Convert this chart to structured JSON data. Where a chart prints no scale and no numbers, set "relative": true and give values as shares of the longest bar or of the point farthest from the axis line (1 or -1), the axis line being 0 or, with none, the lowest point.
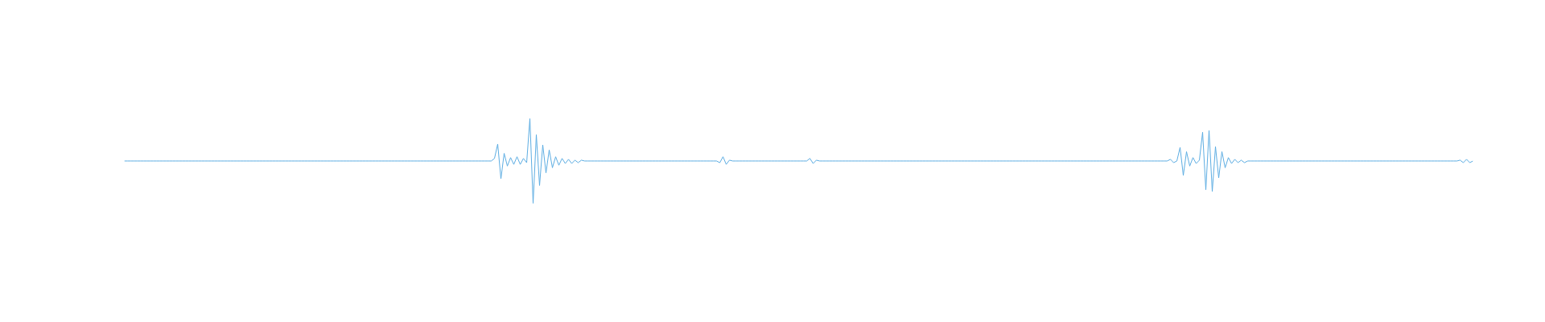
{
  "chart_data": {
    "type": "line",
    "relative": true,
    "color": "#5dade2",
    "categories": [
      null,
      null,
      null,
      null,
      null,
      null,
      null,
      null,
      null,
      null,
      null,
      null,
      null,
      null,
      null,
      null,
      null,
      null,
      null,
      null,
      null,
      null,
      null,
      null,
      null,
      null,
      null,
      null,
      null,
      null,
      null,
      null,
      null,
      null,
      null,
      null,
      null,
      null,
      null,
      null,
      null,
      null,
      null,
      null,
      null,
      null,
      null,
      null,
      null,
      null,
      null,
      null,
      null,
      null,
      null,
      null,
      null,
      null,
      null,
      null,
      null,
      null,
      null,
      null,
      null,
      null,
      null,
      null,
      null,
      null,
      null,
      null,
      null,
      null,
      null,
      null,
      null,
      null,
      null,
      null,
      null,
      null,
      null,
      null,
      null,
      null,
      null,
      null,
      null,
      null,
      null,
      null,
      null,
      null,
      null,
      null,
      null,
      null,
      null,
      null,
      null,
      null,
      null,
      null,
      null,
      null,
      null,
      null,
      null,
      null,
      null,
      null,
      null,
      null,
      null,
      null,
      null,
      null,
      null,
      null,
      null,
      null,
      null,
      null,
      null,
      null,
      null,
      null,
      null,
      null,
      null,
      null,
      null,
      null,
      null,
      null,
      null,
      null,
      null,
      null,
      null,
      null,
      null,
      null,
      null,
      null,
      null,
      null,
      null,
      null,
      null,
      null,
      null,
      null,
      null,
      null,
      null,
      null,
      null,
      null,
      null,
      null,
      null,
      null,
      null,
      null,
      null,
      null,
      null,
      null,
      null,
      null,
      null,
      null,
      null,
      null,
      null,
      null,
      null,
      null,
      null,
      null,
      null,
      null,
      null,
      null,
      null,
      null,
      null,
      null,
      null,
      null,
      null,
      null,
      null,
      null,
      null,
      null,
      null,
      null,
      null,
      null,
      null,
      null,
      null,
      null,
      null,
      null,
      null,
      null,
      null,
      null,
      null,
      null,
      null,
      null,
      null,
      null,
      null,
      null,
      null,
      null,
      null,
      null,
      null,
      null,
      null,
      null,
      null,
      null,
      null,
      null,
      null,
      null,
      null,
      null,
      null,
      null,
      null,
      null,
      null,
      null,
      null,
      null,
      null,
      null,
      null,
      null,
      null,
      null,
      null,
      null,
      null,
      null,
      null,
      null,
      null,
      null,
      null,
      null,
      null,
      null,
      null,
      null,
      null,
      null,
      null,
      null,
      null,
      null,
      null,
      null,
      null,
      null,
      null,
      null,
      null,
      null,
      null,
      null,
      null,
      null,
      null,
      null,
      null,
      null,
      null,
      null,
      null,
      null,
      null,
      null,
      null,
      null,
      null,
      null,
      null,
      null,
      null,
      null,
      null,
      null,
      null,
      null,
      null,
      null,
      null,
      null,
      null,
      null,
      null,
      null,
      null,
      null,
      null,
      null,
      null,
      null,
      null,
      null,
      null,
      null,
      null,
      null,
      null,
      null,
      null,
      null,
      null,
      null,
      null,
      null,
      null,
      null,
      null,
      null,
      null,
      null,
      null,
      null,
      null,
      null,
      null,
      null,
      null,
      null,
      null,
      null,
      null,
      null,
      null,
      null,
      null,
      null,
      null,
      null,
      null,
      null,
      null,
      null,
      null,
      null,
      null,
      null,
      null,
      null,
      null,
      null,
      null,
      null,
      null,
      null,
      null,
      null,
      null,
      null,
      null,
      null,
      null,
      null,
      null,
      null,
      null,
      null,
      null,
      null,
      null,
      null,
      null,
      null,
      null,
      null,
      null,
      null,
      null,
      null,
      null,
      null,
      null,
      null,
      null,
      null,
      null,
      null,
      null,
      null,
      null,
      null,
      null,
      null,
      null,
      null,
      null,
      null,
      null,
      null,
      null,
      null,
      null,
      null
    ],
    "values": [
      0.5,
      0.5,
      0.5,
      0.5,
      0.5,
      0.5,
      0.5,
      0.5,
      0.5,
      0.5,
      0.5,
      0.5,
      0.5,
      0.5,
      0.5,
      0.5,
      0.5,
      0.5,
      0.5,
      0.5,
      0.5,
      0.5,
      0.5,
      0.5,
      0.5,
      0.5,
      0.5,
      0.5,
      0.5,
      0.5,
      0.5,
      0.5,
      0.5,
      0.5,
      0.5,
      0.5,
      0.5,
      0.5,
      0.5,
      0.5,
      0.5,
      0.5,
      0.5,
      0.5,
      0.5,
      0.5,
      0.5,
      0.5,
      0.5,
      0.5,
      0.5,
      0.5,
      0.5,
      0.5,
      0.5,
      0.5,
      0.5,
      0.5,
      0.5,
      0.5,
      0.5,
      0.5,
      0.5,
      0.5,
      0.5,
      0.5,
      0.5,
      0.5,
      0.5,
      0.5,
      0.5,
      0.5,
      0.5,
      0.5,
      0.5,
      0.5,
      0.5,
      0.5,
      0.5,
      0.5,
      0.5,
      0.5,
      0.5,
      0.5,
      0.5,
      0.5,
      0.5,
      0.5,
      0.5,
      0.5,
      0.5,
      0.5,
      0.5,
      0.5,
      0.5,
      0.5,
      0.5,
      0.5,
      0.5,
      0.5,
      0.5,
      0.5,
      0.5,
      0.5,
      0.5,
      0.5,
      0.5,
      0.5,
      0.5,
      0.5,
      0.5,
      0.5,
      0.5,
      0.5,
      0.5,
      0.53,
      0.7,
      0.29,
      0.59,
      0.44,
      0.54,
      0.46,
      0.55,
      0.46,
      0.53,
      0.48,
      1.0,
      0.0,
      0.81,
      0.21,
      0.69,
      0.36,
      0.63,
      0.42,
      0.55,
      0.45,
      0.53,
      0.47,
      0.52,
      0.47,
      0.51,
      0.48,
      0.51,
      0.5,
      0.5,
      0.5,
      0.5,
      0.5,
      0.5,
      0.5,
      0.5,
      0.5,
      0.5,
      0.5,
      0.5,
      0.5,
      0.5,
      0.5,
      0.5,
      0.5,
      0.5,
      0.5,
      0.5,
      0.5,
      0.5,
      0.5,
      0.5,
      0.5,
      0.5,
      0.5,
      0.5,
      0.5,
      0.5,
      0.5,
      0.5,
      0.5,
      0.5,
      0.5,
      0.5,
      0.5,
      0.5,
      0.5,
      0.5,
      0.5,
      0.5,
      0.48,
      0.55,
      0.46,
      0.51,
      0.5,
      0.5,
      0.5,
      0.5,
      0.5,
      0.5,
      0.5,
      0.5,
      0.5,
      0.5,
      0.5,
      0.5,
      0.5,
      0.5,
      0.5,
      0.5,
      0.5,
      0.5,
      0.5,
      0.5,
      0.5,
      0.5,
      0.5,
      0.5,
      0.53,
      0.47,
      0.51,
      0.5,
      0.5,
      0.5,
      0.5,
      0.5,
      0.5,
      0.5,
      0.5,
      0.5,
      0.5,
      0.5,
      0.5,
      0.5,
      0.5,
      0.5,
      0.5,
      0.5,
      0.5,
      0.5,
      0.5,
      0.5,
      0.5,
      0.5,
      0.5,
      0.5,
      0.5,
      0.5,
      0.5,
      0.5,
      0.5,
      0.5,
      0.5,
      0.5,
      0.5,
      0.5,
      0.5,
      0.5,
      0.5,
      0.5,
      0.5,
      0.5,
      0.5,
      0.5,
      0.5,
      0.5,
      0.5,
      0.5,
      0.5,
      0.5,
      0.5,
      0.5,
      0.5,
      0.5,
      0.5,
      0.5,
      0.5,
      0.5,
      0.5,
      0.5,
      0.5,
      0.5,
      0.5,
      0.5,
      0.5,
      0.5,
      0.5,
      0.5,
      0.5,
      0.5,
      0.5,
      0.5,
      0.5,
      0.5,
      0.5,
      0.5,
      0.5,
      0.5,
      0.5,
      0.5,
      0.5,
      0.5,
      0.5,
      0.5,
      0.5,
      0.5,
      0.5,
      0.5,
      0.5,
      0.5,
      0.5,
      0.5,
      0.5,
      0.5,
      0.5,
      0.5,
      0.5,
      0.5,
      0.5,
      0.5,
      0.5,
      0.5,
      0.5,
      0.5,
      0.5,
      0.5,
      0.5,
      0.5,
      0.5,
      0.5,
      0.52,
      0.48,
      0.5,
      0.66,
      0.33,
      0.61,
      0.44,
      0.54,
      0.47,
      0.51,
      0.84,
      0.16,
      0.86,
      0.14,
      0.67,
      0.3,
      0.61,
      0.42,
      0.54,
      0.47,
      0.52,
      0.48,
      0.51,
      0.48,
      0.5,
      0.5,
      0.5,
      0.5,
      0.5,
      0.5,
      0.5,
      0.5,
      0.5,
      0.5,
      0.5,
      0.5,
      0.5,
      0.5,
      0.5,
      0.5,
      0.5,
      0.5,
      0.5,
      0.5,
      0.5,
      0.5,
      0.5,
      0.5,
      0.5,
      0.5,
      0.5,
      0.5,
      0.5,
      0.5,
      0.5,
      0.5,
      0.5,
      0.5,
      0.5,
      0.5,
      0.5,
      0.5,
      0.5,
      0.5,
      0.5,
      0.5,
      0.5,
      0.5,
      0.5,
      0.5,
      0.5,
      0.5,
      0.5,
      0.5,
      0.5,
      0.5,
      0.5,
      0.5,
      0.5,
      0.5,
      0.5,
      0.5,
      0.5,
      0.5,
      0.5,
      0.5,
      0.5,
      0.5,
      0.5,
      0.5,
      0.51,
      0.48,
      0.52,
      0.48,
      0.5
    ]
  }
}
